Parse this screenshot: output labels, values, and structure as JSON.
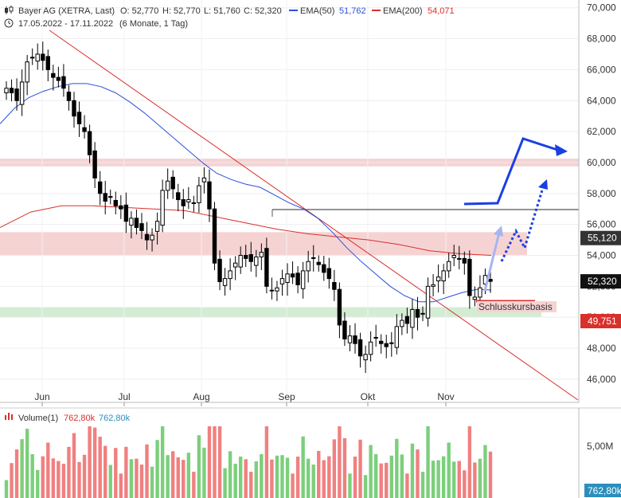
{
  "header": {
    "title": "Bayer AG (XETRA, Last)",
    "open": "O: 52,770",
    "high": "H: 52,770",
    "low": "L: 51,760",
    "close": "C: 52,320",
    "ema50_label": "EMA(50)",
    "ema50_value": "51,762",
    "ema200_label": "EMA(200)",
    "ema200_value": "54,071",
    "range": "17.05.2022 - 17.11.2022",
    "period": "(6 Monate, 1 Tag)"
  },
  "colors": {
    "up": "#ffffff",
    "down": "#000000",
    "ema50": "#2b4fd8",
    "ema200": "#d9302c",
    "resistance_zone": "#f6d3d3",
    "support_zone": "#d4ecd4",
    "arrow": "#1a3fe0",
    "arrow_light": "#a8b4f0",
    "vol_up": "#7ccf7c",
    "vol_down": "#f08080",
    "vol_badge": "#2a8fbd"
  },
  "chart_data": {
    "type": "candlestick",
    "x_labels": [
      "Jun",
      "Jul",
      "Aug",
      "Sep",
      "Okt",
      "Nov"
    ],
    "y_ticks": [
      "46,000",
      "48,000",
      "50,000",
      "52,000",
      "54,000",
      "56,000",
      "58,000",
      "60,000",
      "62,000",
      "64,000",
      "66,000",
      "68,000",
      "70,000"
    ],
    "ylim": [
      44.5,
      70.5
    ],
    "price_badges": [
      {
        "label": "55,120",
        "value": 55.12,
        "color": "#333333"
      },
      {
        "label": "52,320",
        "value": 52.32,
        "color": "#111111"
      },
      {
        "label": "49,751",
        "value": 49.751,
        "color": "#d9302c"
      }
    ],
    "zones": [
      {
        "name": "resistance-upper",
        "from": 59.75,
        "to": 60.25
      },
      {
        "name": "resistance-lower",
        "from": 54.0,
        "to": 55.5
      },
      {
        "name": "support",
        "from": 50.0,
        "to": 50.65
      }
    ],
    "annotation": "Schlusskursbasis",
    "closes": [
      64.8,
      64.5,
      64.0,
      65.2,
      66.5,
      66.8,
      67.0,
      66.6,
      66.0,
      65.5,
      65.3,
      64.8,
      64.0,
      63.0,
      62.5,
      62.0,
      60.5,
      59.0,
      58.0,
      57.5,
      57.8,
      57.2,
      57.0,
      56.2,
      56.4,
      55.8,
      55.6,
      55.0,
      55.3,
      56.2,
      58.2,
      58.8,
      58.3,
      57.6,
      57.2,
      57.6,
      57.4,
      58.5,
      59.0,
      57.0,
      53.5,
      52.3,
      52.5,
      53.0,
      53.5,
      54.0,
      53.8,
      53.6,
      53.9,
      54.2,
      52.0,
      51.7,
      51.9,
      52.5,
      52.8,
      52.6,
      52.1,
      53.0,
      53.6,
      53.8,
      53.4,
      52.9,
      52.5,
      51.8,
      49.5,
      48.6,
      48.8,
      48.3,
      47.5,
      47.6,
      48.4,
      48.7,
      48.3,
      48.1,
      48.3,
      49.4,
      49.8,
      49.6,
      50.5,
      50.0,
      50.2,
      52.0,
      52.1,
      52.6,
      53.0,
      53.6,
      54.0,
      53.8,
      53.5,
      51.4,
      51.3,
      51.9,
      52.7,
      52.32
    ],
    "ema50": [
      62.5,
      63.5,
      64.2,
      64.6,
      64.9,
      65.1,
      65.1,
      64.9,
      64.5,
      63.9,
      63.2,
      62.4,
      61.6,
      60.8,
      60.0,
      59.3,
      58.9,
      58.6,
      58.4,
      57.9,
      57.4,
      57.0,
      56.4,
      55.5,
      54.5,
      53.6,
      52.8,
      52.0,
      51.4,
      51.0,
      51.0,
      51.3,
      51.6,
      51.8,
      51.76
    ],
    "ema200": [
      55.8,
      56.8,
      57.2,
      57.2,
      57.1,
      57.0,
      56.9,
      56.5,
      56.1,
      55.7,
      55.4,
      55.2,
      55.0,
      54.7,
      54.3,
      54.1,
      54.0
    ]
  },
  "volume": {
    "label": "Volume(1)",
    "value": "762,80k",
    "value2": "762,80k",
    "y_tick": "5,00M",
    "badge": "762,80k"
  }
}
